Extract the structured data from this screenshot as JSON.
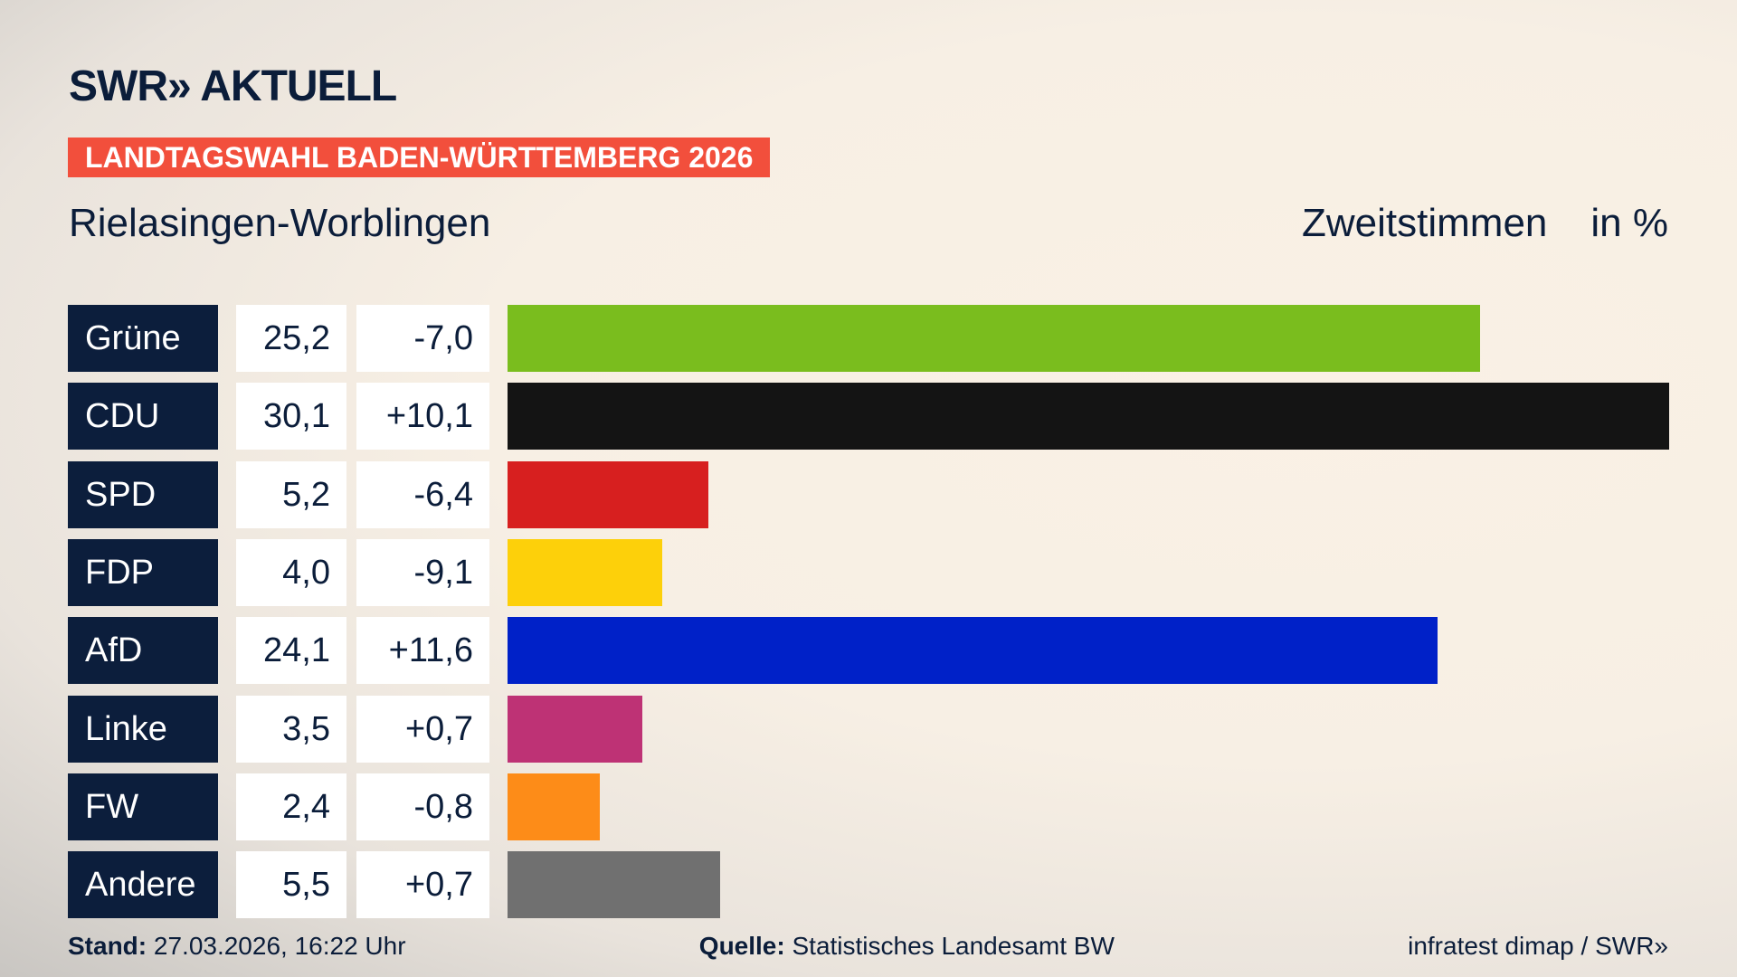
{
  "header": {
    "logo": "SWR» AKTUELL",
    "banner": "LANDTAGSWAHL BADEN-WÜRTTEMBERG 2026",
    "place": "Rielasingen-Worblingen",
    "vote_type": "Zweitstimmen",
    "unit": "in %"
  },
  "chart_data": {
    "type": "bar",
    "orientation": "horizontal",
    "categories": [
      "Grüne",
      "CDU",
      "SPD",
      "FDP",
      "AfD",
      "Linke",
      "FW",
      "Andere"
    ],
    "values": [
      25.2,
      30.1,
      5.2,
      4.0,
      24.1,
      3.5,
      2.4,
      5.5
    ],
    "value_labels": [
      "25,2",
      "30,1",
      "5,2",
      "4,0",
      "24,1",
      "3,5",
      "2,4",
      "5,5"
    ],
    "change_labels": [
      "-7,0",
      "+10,1",
      "-6,4",
      "-9,1",
      "+11,6",
      "+0,7",
      "-0,8",
      "+0,7"
    ],
    "colors": [
      "#7abd1e",
      "#141414",
      "#d71f1f",
      "#fdd00a",
      "#0021c8",
      "#be3275",
      "#fd8c18",
      "#707070"
    ],
    "unit": "in %"
  },
  "footer": {
    "stand_label": "Stand:",
    "stand_value": "27.03.2026, 16:22 Uhr",
    "source_label": "Quelle:",
    "source_value": "Statistisches Landesamt BW",
    "credit": "infratest dimap / SWR»"
  }
}
